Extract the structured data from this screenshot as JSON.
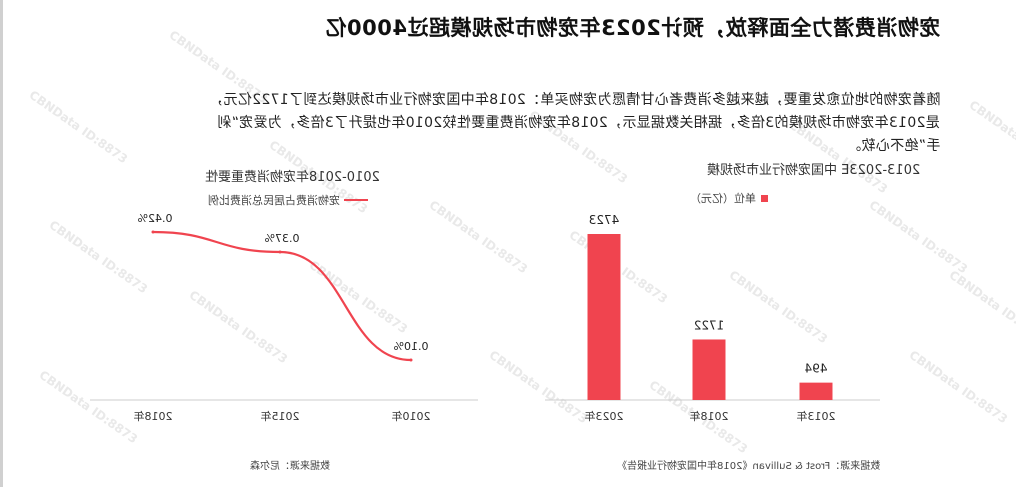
{
  "page": {
    "headline": "宠物消费潜力全面释放，预计2023年宠物市场规模超过4000亿",
    "paragraph_lines": [
      "随着宠物的地位愈发重要，越来越多消费者心甘情愿为宠物买单：2018年中国宠物行业市场规模达到了1722亿元，",
      "是2013年宠物市场规模的3倍多，据相关数据显示，2018年宠物消费重要性较2010年也提升了3倍多，为爱宠“剁",
      "手”绝不心软。"
    ],
    "watermark": "CBNData ID:8873"
  },
  "colors": {
    "accent": "#f0444f",
    "axis": "#cccccc",
    "text": "#222222"
  },
  "chart_data": [
    {
      "type": "line",
      "title": "2010-2018年宠物消费重要性",
      "legend": "宠物消费占居民总消费比例",
      "categories": [
        "2010年",
        "2015年",
        "2018年"
      ],
      "series": [
        {
          "name": "宠物消费占居民总消费比例",
          "values": [
            0.1,
            0.37,
            0.42
          ],
          "labels": [
            "0.10%",
            "0.37%",
            "0.42%"
          ]
        }
      ],
      "ylim": [
        0,
        0.5
      ],
      "x_direction": "right-to-left",
      "grid": false,
      "source": "数据来源：尼尔森"
    },
    {
      "type": "bar",
      "title": "2013-2023E 中国宠物行业市场规模",
      "legend": "单位（亿元）",
      "categories": [
        "2013年",
        "2018年",
        "2023年"
      ],
      "values": [
        494,
        1722,
        4723
      ],
      "ylim": [
        0,
        5000
      ],
      "x_direction": "right-to-left",
      "grid": false,
      "source": "数据来源：Frost & Sullivan《2018年中国宠物行业报告》"
    }
  ]
}
